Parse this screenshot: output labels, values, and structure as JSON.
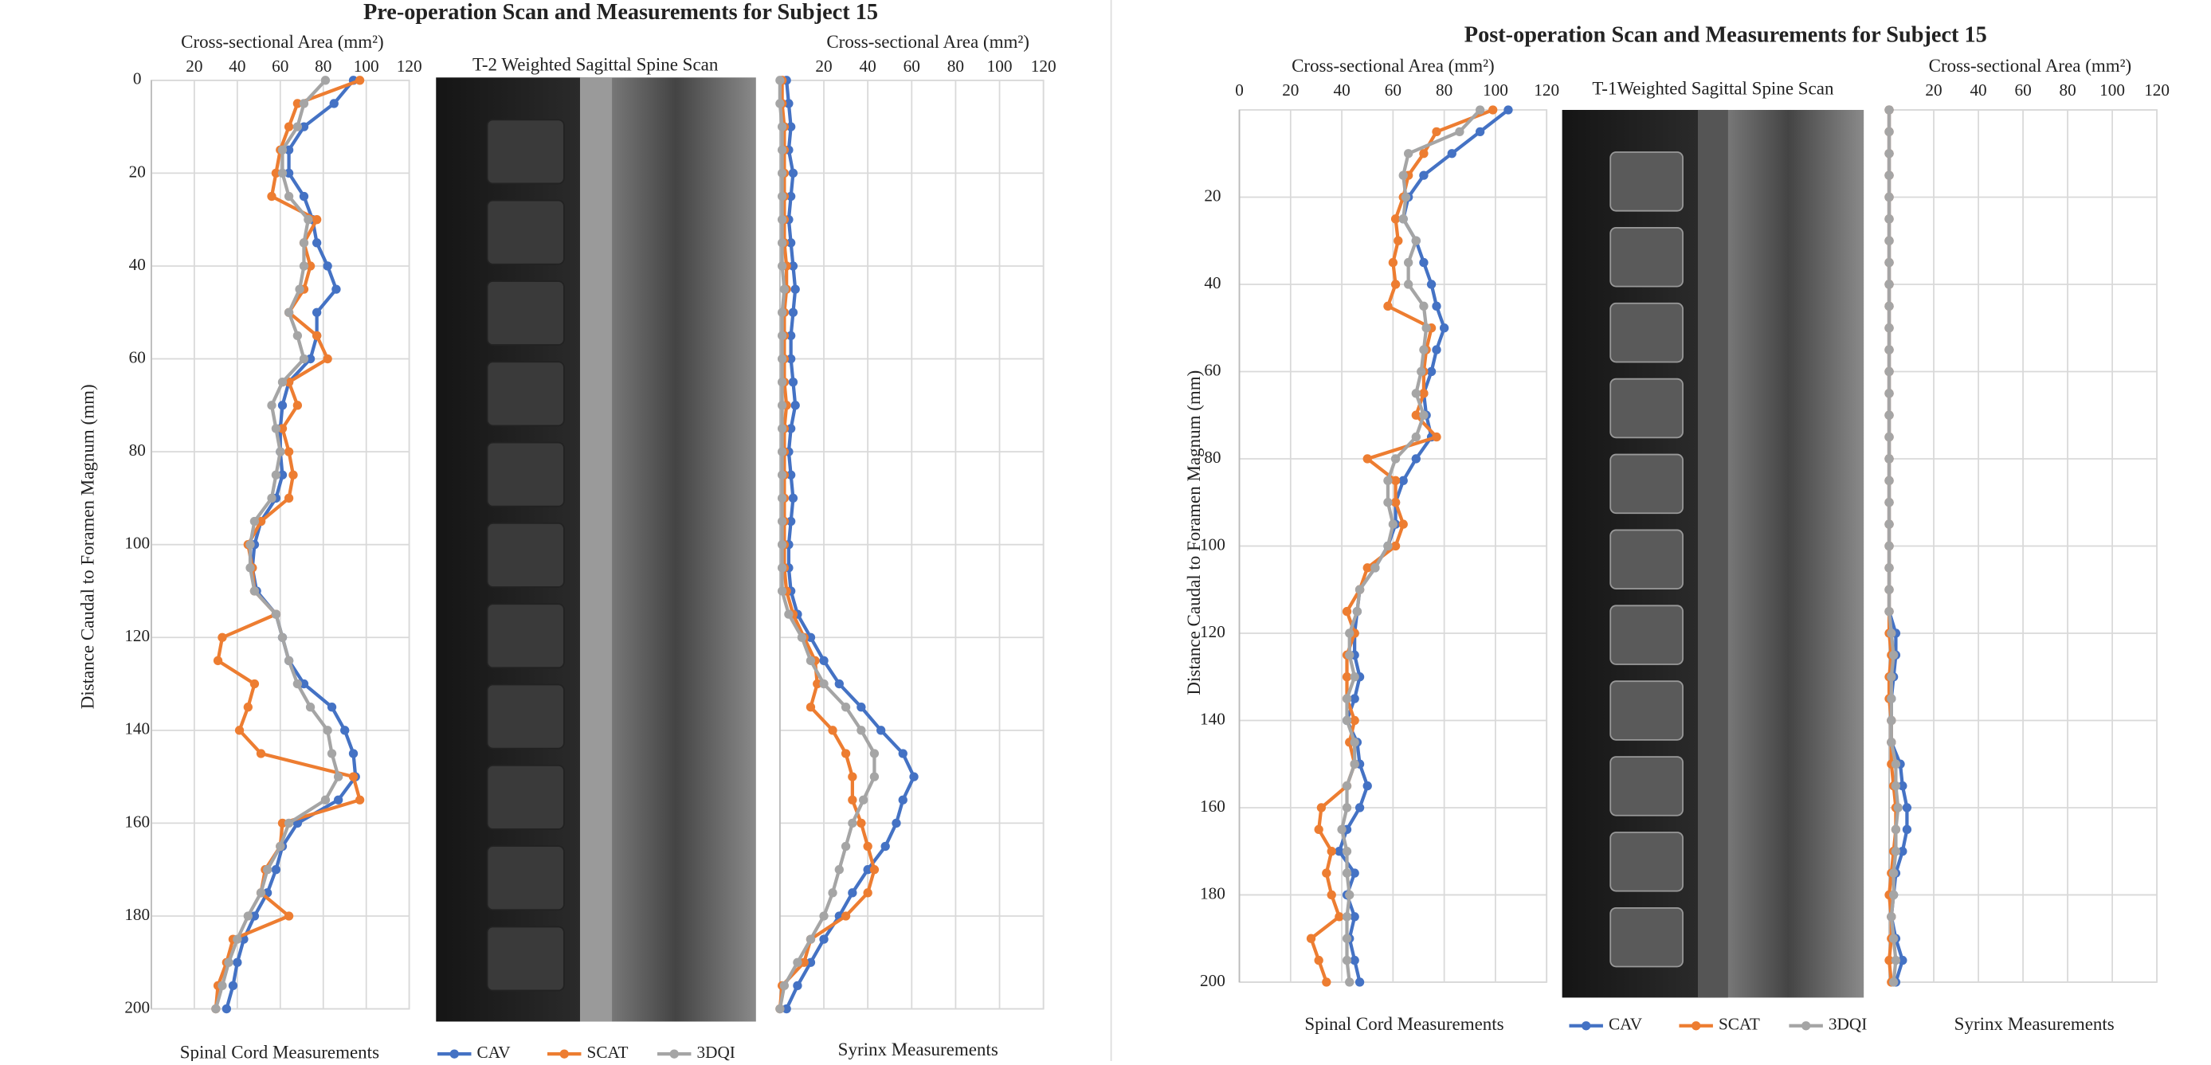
{
  "panels": [
    {
      "title": "Pre-operation Scan and Measurements for Subject 15",
      "scan_label": "T-2 Weighted Sagittal Spine Scan"
    },
    {
      "title": "Post-operation Scan and Measurements for Subject 15",
      "scan_label": "T-1Weighted Sagittal Spine Scan"
    }
  ],
  "chart_data": [
    {
      "type": "line",
      "x_label": "Cross-sectional Area (mm²)",
      "y_label": "Distance Caudal to Foramen Magnum (mm)",
      "title": "Spinal Cord Measurements",
      "xlim": [
        0,
        120
      ],
      "xticks": [
        20,
        40,
        60,
        80,
        100,
        120
      ],
      "ylim": [
        0,
        200
      ],
      "yticks": [
        0,
        20,
        40,
        60,
        80,
        100,
        120,
        140,
        160,
        180,
        200
      ],
      "y_inverted": true,
      "show_ytick_labels": true,
      "grid": true,
      "markers": true,
      "y": [
        0,
        5,
        10,
        15,
        20,
        25,
        30,
        35,
        40,
        45,
        50,
        55,
        60,
        65,
        70,
        75,
        80,
        85,
        90,
        95,
        100,
        105,
        110,
        115,
        120,
        125,
        130,
        135,
        140,
        145,
        150,
        155,
        160,
        165,
        170,
        175,
        180,
        185,
        190,
        195,
        200
      ],
      "series": [
        {
          "name": "CAV",
          "color": "#4472c4",
          "values": [
            94,
            85,
            71,
            64,
            64,
            71,
            75,
            77,
            82,
            86,
            77,
            77,
            74,
            64,
            61,
            60,
            60,
            61,
            58,
            51,
            48,
            47,
            49,
            58,
            61,
            64,
            71,
            84,
            90,
            94,
            95,
            87,
            68,
            61,
            58,
            54,
            48,
            43,
            40,
            38,
            35
          ]
        },
        {
          "name": "SCAT",
          "color": "#ed7d31",
          "values": [
            97,
            68,
            64,
            60,
            58,
            56,
            77,
            71,
            74,
            71,
            64,
            77,
            82,
            64,
            68,
            61,
            64,
            66,
            64,
            51,
            45,
            47,
            48,
            58,
            33,
            31,
            48,
            45,
            41,
            51,
            94,
            97,
            61,
            60,
            53,
            51,
            64,
            38,
            35,
            31,
            30
          ]
        },
        {
          "name": "3DQI",
          "color": "#a5a5a5",
          "values": [
            81,
            71,
            68,
            61,
            61,
            64,
            73,
            71,
            71,
            69,
            64,
            68,
            71,
            61,
            56,
            58,
            60,
            58,
            56,
            48,
            46,
            46,
            48,
            58,
            61,
            64,
            68,
            74,
            82,
            84,
            87,
            81,
            64,
            60,
            54,
            51,
            45,
            40,
            36,
            33,
            30
          ]
        }
      ]
    },
    {
      "type": "line",
      "x_label": "Cross-sectional Area (mm²)",
      "title": "Syrinx Measurements",
      "xlim": [
        0,
        120
      ],
      "xticks": [
        20,
        40,
        60,
        80,
        100,
        120
      ],
      "ylim": [
        0,
        200
      ],
      "yticks": [
        0,
        20,
        40,
        60,
        80,
        100,
        120,
        140,
        160,
        180,
        200
      ],
      "y_inverted": true,
      "show_ytick_labels": false,
      "grid": true,
      "markers": true,
      "y": [
        0,
        5,
        10,
        15,
        20,
        25,
        30,
        35,
        40,
        45,
        50,
        55,
        60,
        65,
        70,
        75,
        80,
        85,
        90,
        95,
        100,
        105,
        110,
        115,
        120,
        125,
        130,
        135,
        140,
        145,
        150,
        155,
        160,
        165,
        170,
        175,
        180,
        185,
        190,
        195,
        200
      ],
      "series": [
        {
          "color": "#4472c4",
          "values": [
            3,
            4,
            5,
            4,
            6,
            5,
            4,
            5,
            6,
            7,
            6,
            5,
            5,
            6,
            7,
            5,
            4,
            5,
            6,
            5,
            4,
            4,
            5,
            8,
            14,
            20,
            27,
            37,
            46,
            56,
            61,
            56,
            53,
            48,
            40,
            33,
            27,
            20,
            14,
            8,
            3
          ]
        },
        {
          "color": "#ed7d31",
          "values": [
            1,
            1,
            2,
            2,
            2,
            2,
            2,
            2,
            3,
            3,
            2,
            2,
            2,
            2,
            3,
            2,
            2,
            2,
            2,
            2,
            2,
            2,
            3,
            6,
            11,
            16,
            17,
            14,
            24,
            30,
            33,
            33,
            37,
            40,
            43,
            40,
            30,
            14,
            11,
            1,
            0
          ]
        },
        {
          "color": "#a5a5a5",
          "values": [
            0,
            0,
            1,
            1,
            1,
            1,
            1,
            1,
            1,
            2,
            1,
            1,
            1,
            1,
            1,
            1,
            1,
            1,
            1,
            1,
            1,
            1,
            1,
            4,
            10,
            14,
            20,
            30,
            37,
            43,
            43,
            38,
            33,
            30,
            27,
            24,
            20,
            14,
            8,
            2,
            0
          ]
        }
      ]
    },
    {
      "type": "line",
      "x_label": "Cross-sectional Area (mm²)",
      "y_label": "Distance Caudal to Foramen Magnum (mm)",
      "title": "Spinal Cord Measurements",
      "xlim": [
        0,
        120
      ],
      "xticks": [
        0,
        20,
        40,
        60,
        80,
        100,
        120
      ],
      "ylim": [
        0,
        200
      ],
      "yticks": [
        20,
        40,
        60,
        80,
        100,
        120,
        140,
        160,
        180,
        200
      ],
      "y_inverted": true,
      "show_ytick_labels": true,
      "grid": true,
      "markers": true,
      "y": [
        0,
        5,
        10,
        15,
        20,
        25,
        30,
        35,
        40,
        45,
        50,
        55,
        60,
        65,
        70,
        75,
        80,
        85,
        90,
        95,
        100,
        105,
        110,
        115,
        120,
        125,
        130,
        135,
        140,
        145,
        150,
        155,
        160,
        165,
        170,
        175,
        180,
        185,
        190,
        195,
        200
      ],
      "series": [
        {
          "name": "CAV",
          "color": "#4472c4",
          "values": [
            105,
            94,
            83,
            72,
            66,
            64,
            69,
            72,
            75,
            77,
            80,
            77,
            75,
            72,
            73,
            75,
            69,
            64,
            61,
            61,
            58,
            53,
            47,
            46,
            45,
            45,
            47,
            45,
            42,
            46,
            47,
            50,
            47,
            42,
            39,
            45,
            42,
            45,
            43,
            45,
            47
          ]
        },
        {
          "name": "SCAT",
          "color": "#ed7d31",
          "values": [
            99,
            77,
            72,
            66,
            64,
            61,
            62,
            60,
            61,
            58,
            75,
            73,
            72,
            72,
            69,
            77,
            50,
            61,
            61,
            64,
            61,
            50,
            47,
            42,
            45,
            42,
            42,
            42,
            45,
            43,
            45,
            42,
            32,
            31,
            36,
            34,
            36,
            39,
            28,
            31,
            34
          ]
        },
        {
          "name": "3DQI",
          "color": "#a5a5a5",
          "values": [
            94,
            86,
            66,
            64,
            65,
            64,
            69,
            66,
            66,
            72,
            73,
            72,
            71,
            69,
            72,
            69,
            61,
            58,
            58,
            60,
            58,
            53,
            47,
            46,
            43,
            43,
            45,
            42,
            42,
            45,
            45,
            42,
            42,
            40,
            42,
            42,
            43,
            42,
            42,
            42,
            43
          ]
        }
      ]
    },
    {
      "type": "line",
      "x_label": "Cross-sectional Area (mm²)",
      "title": "Syrinx Measurements",
      "xlim": [
        0,
        120
      ],
      "xticks": [
        20,
        40,
        60,
        80,
        100,
        120
      ],
      "ylim": [
        0,
        200
      ],
      "yticks": [
        0,
        20,
        40,
        60,
        80,
        100,
        120,
        140,
        160,
        180,
        200
      ],
      "y_inverted": true,
      "show_ytick_labels": false,
      "grid": true,
      "markers": true,
      "y": [
        0,
        5,
        10,
        15,
        20,
        25,
        30,
        35,
        40,
        45,
        50,
        55,
        60,
        65,
        70,
        75,
        80,
        85,
        90,
        95,
        100,
        105,
        110,
        115,
        120,
        125,
        130,
        135,
        140,
        145,
        150,
        155,
        160,
        165,
        170,
        175,
        180,
        185,
        190,
        195,
        200
      ],
      "series": [
        {
          "color": "#4472c4",
          "values": [
            0,
            0,
            0,
            0,
            0,
            0,
            0,
            0,
            0,
            0,
            0,
            0,
            0,
            0,
            0,
            0,
            0,
            0,
            0,
            0,
            0,
            0,
            0,
            0,
            3,
            3,
            2,
            1,
            1,
            1,
            5,
            6,
            8,
            8,
            6,
            3,
            2,
            1,
            3,
            6,
            3
          ]
        },
        {
          "color": "#ed7d31",
          "values": [
            0,
            0,
            0,
            0,
            0,
            0,
            0,
            0,
            0,
            0,
            0,
            0,
            0,
            0,
            0,
            0,
            0,
            0,
            0,
            0,
            0,
            0,
            0,
            0,
            0,
            1,
            0,
            0,
            1,
            1,
            1,
            2,
            3,
            3,
            2,
            1,
            0,
            1,
            1,
            0,
            1
          ]
        },
        {
          "color": "#a5a5a5",
          "values": [
            0,
            0,
            0,
            0,
            0,
            0,
            0,
            0,
            0,
            0,
            0,
            0,
            0,
            0,
            0,
            0,
            0,
            0,
            0,
            0,
            0,
            0,
            0,
            0,
            1,
            2,
            1,
            1,
            1,
            1,
            3,
            3,
            4,
            3,
            3,
            2,
            2,
            1,
            2,
            3,
            2
          ]
        }
      ]
    }
  ]
}
